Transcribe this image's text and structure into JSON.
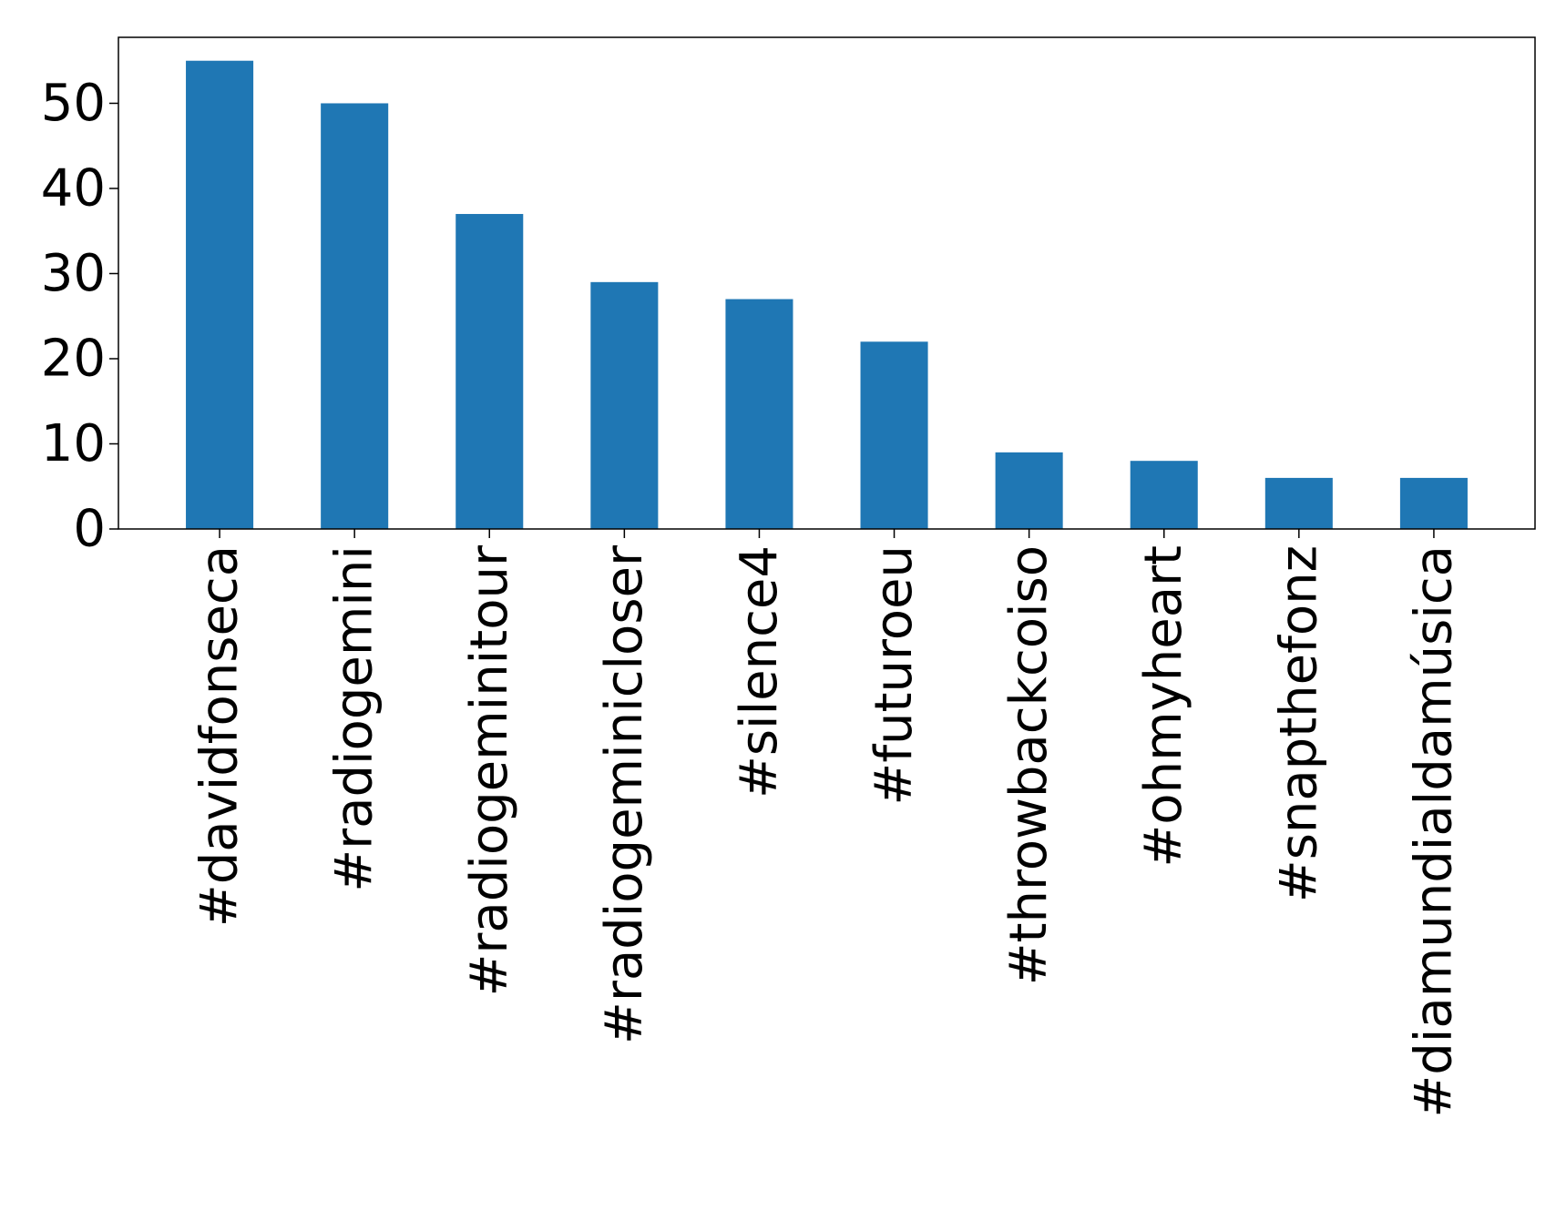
{
  "chart_data": {
    "type": "bar",
    "categories": [
      "#davidfonseca",
      "#radiogemini",
      "#radiogeminitour",
      "#radiogeminicloser",
      "#silence4",
      "#futuroeu",
      "#throwbackcoiso",
      "#ohmyheart",
      "#snapthefonz",
      "#diamundialdamúsica"
    ],
    "values": [
      55,
      50,
      37,
      29,
      27,
      22,
      9,
      8,
      6,
      6
    ],
    "ylim": [
      0,
      57.75
    ],
    "yticks": [
      0,
      10,
      20,
      30,
      40,
      50
    ],
    "bar_color": "#1f77b4",
    "grid": false,
    "legend": "none"
  }
}
